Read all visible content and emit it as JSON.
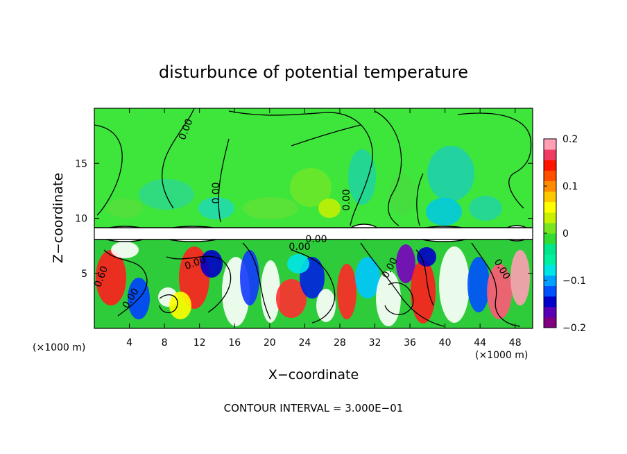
{
  "chart_data": {
    "type": "heatmap",
    "title": "disturbunce of potential temperature",
    "xlabel": "X−coordinate",
    "ylabel": "Z−coordinate",
    "x_unit": "(×1000 m)",
    "y_unit": "(×1000 m)",
    "xlim": [
      0,
      50
    ],
    "ylim": [
      0,
      20
    ],
    "x_ticks": [
      4,
      8,
      12,
      16,
      20,
      24,
      28,
      32,
      36,
      40,
      44,
      48
    ],
    "x_tick_labels": [
      "4",
      "8",
      "12",
      "16",
      "20",
      "24",
      "28",
      "32",
      "36",
      "40",
      "44",
      "48"
    ],
    "y_ticks": [
      5,
      10,
      15
    ],
    "y_tick_labels": [
      "5",
      "10",
      "15"
    ],
    "contour_labels": [
      "0.00",
      "0.00",
      "0.00",
      "0.00",
      "0.00",
      "0.00",
      "0.00",
      "0.00",
      "0.00",
      "0.60"
    ],
    "contour_interval": "CONTOUR INTERVAL = 3.000E−01",
    "colorbar": {
      "range": [
        -0.2,
        0.2
      ],
      "tick_labels": [
        "0.2",
        "0.1",
        "0",
        "−0.1",
        "−0.2"
      ],
      "tick_values": [
        0.2,
        0.1,
        0.0,
        -0.1,
        -0.2
      ],
      "colors": [
        "#800080",
        "#5a00b4",
        "#0000c8",
        "#0050ff",
        "#00a0ff",
        "#00e6e6",
        "#00f0a0",
        "#00e68c",
        "#32dc32",
        "#78e61e",
        "#c8f000",
        "#ffff00",
        "#ffc800",
        "#ff8c00",
        "#ff5000",
        "#ff1400",
        "#f03c64",
        "#ffa0b4"
      ]
    },
    "grid": false,
    "legend": "right"
  }
}
